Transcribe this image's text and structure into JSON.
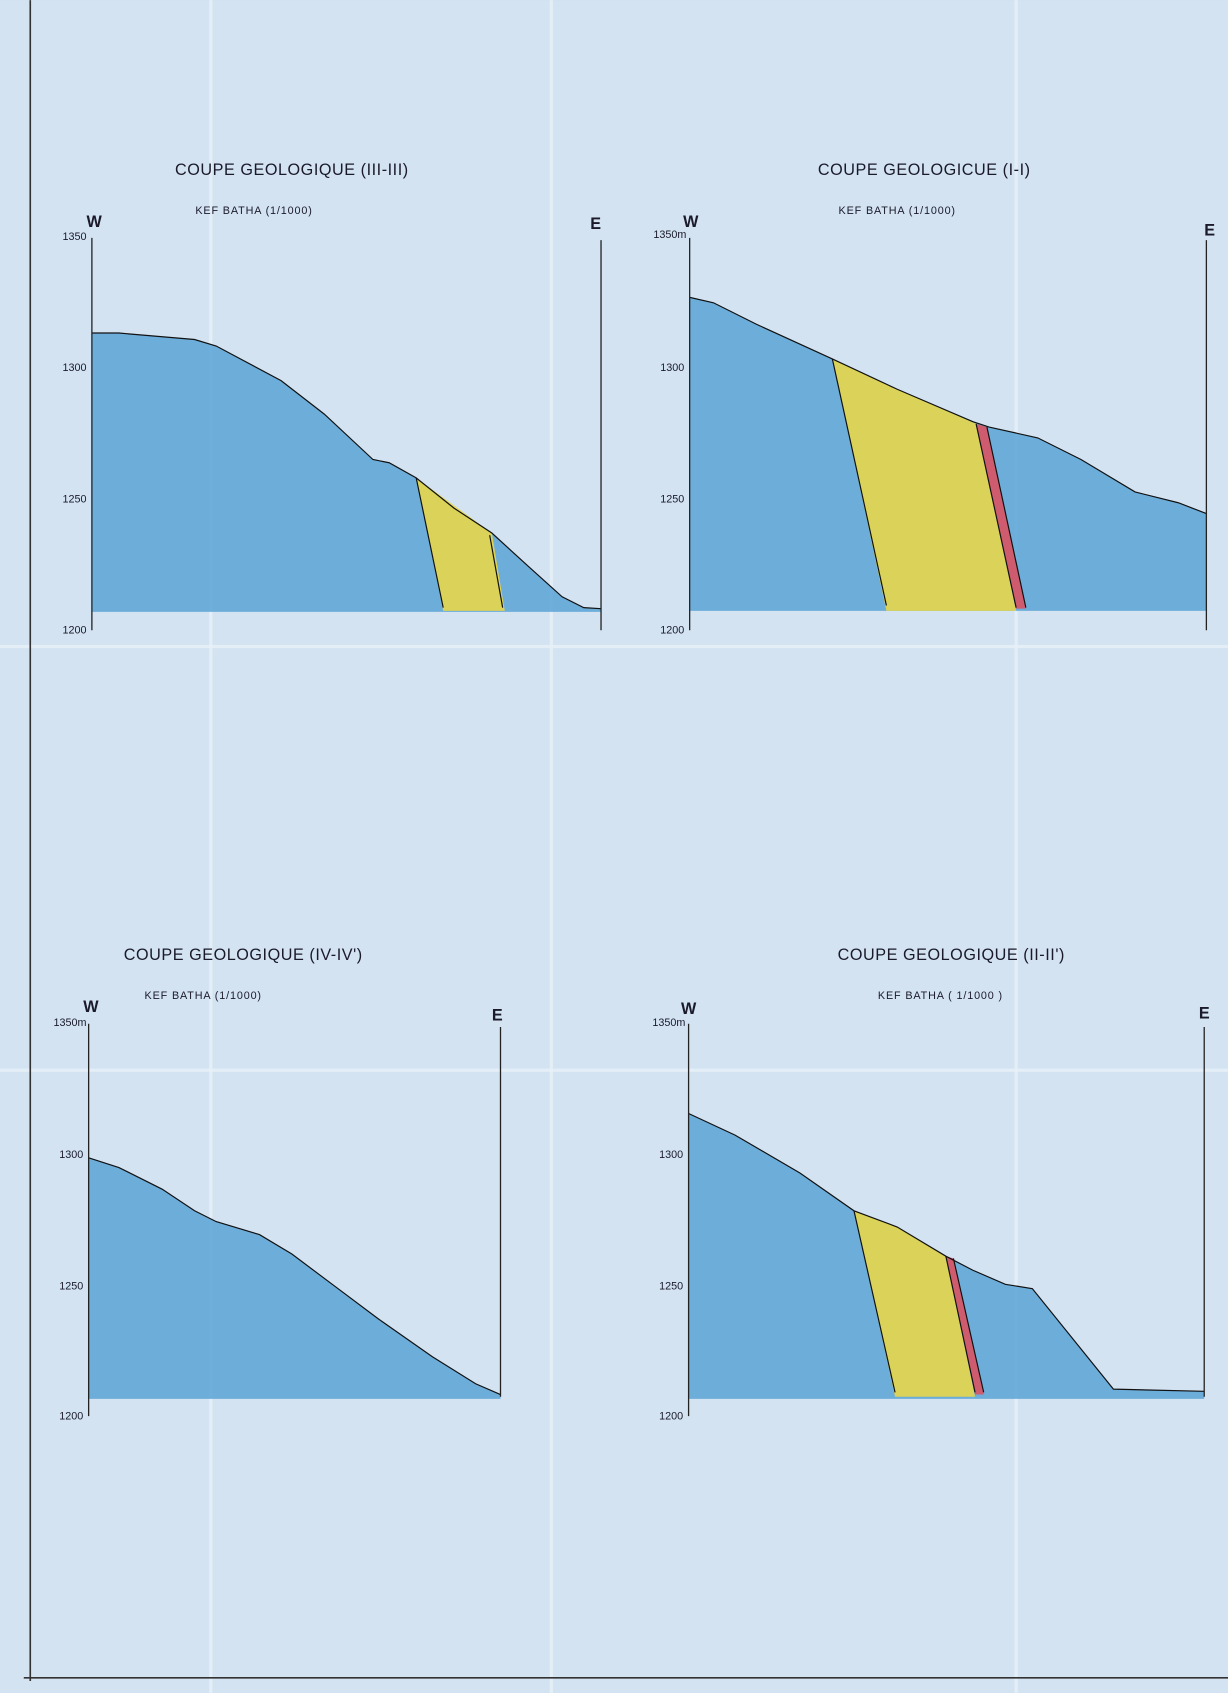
{
  "sections": [
    {
      "title": "COUPE GEOLOGIQUE (III-III)",
      "subtitle": "KEF BATHA (1/1000)",
      "west": "W",
      "east": "E",
      "elevations": [
        "1350",
        "1300",
        "1250",
        "1200"
      ]
    },
    {
      "title": "COUPE GEOLOGICUE (I-I)",
      "subtitle": "KEF BATHA (1/1000)",
      "west": "W",
      "east": "E",
      "elevations": [
        "1350m",
        "1300",
        "1250",
        "1200"
      ]
    },
    {
      "title": "COUPE GEOLOGIQUE (IV-IV')",
      "subtitle": "KEF BATHA (1/1000)",
      "west": "W",
      "east": "E",
      "elevations": [
        "1350m",
        "1300",
        "1250",
        "1200"
      ]
    },
    {
      "title": "COUPE GEOLOGIQUE (II-II')",
      "subtitle": "KEF BATHA ( 1/1000 )",
      "west": "W",
      "east": "E",
      "elevations": [
        "1350m",
        "1300",
        "1250",
        "1200"
      ]
    }
  ]
}
